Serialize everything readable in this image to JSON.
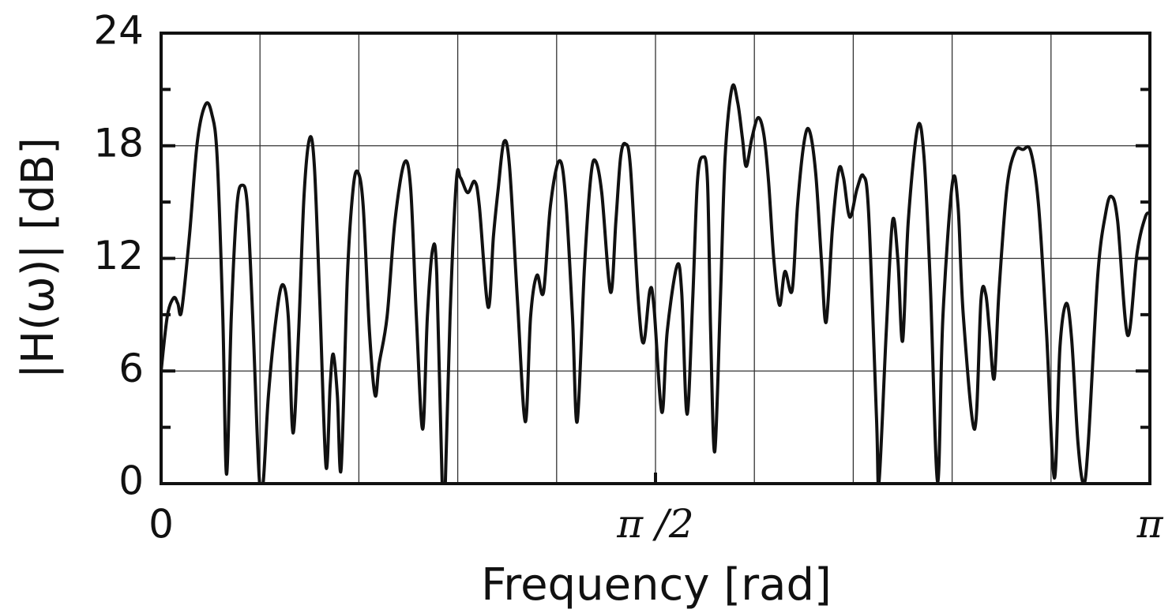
{
  "chart_data": {
    "type": "line",
    "xlabel": "Frequency [rad]",
    "ylabel": "|H(ω)| [dB]",
    "xlim": [
      0,
      3.14159
    ],
    "ylim": [
      0,
      24
    ],
    "xticks": [
      0,
      {
        "value": 1.5708,
        "label": "π /2"
      },
      {
        "value": 3.14159,
        "label": "π"
      }
    ],
    "xgrid": [
      0.314159,
      0.628319,
      0.942478,
      1.256637,
      1.570796,
      1.884956,
      2.199115,
      2.513274,
      2.827433
    ],
    "yticks": [
      0,
      6,
      12,
      18,
      24
    ],
    "yminor": [
      3,
      9,
      15,
      21
    ],
    "grid": true,
    "series": [
      {
        "name": "|H(ω)|",
        "color": "#111111",
        "x": [
          0,
          0.02,
          0.04,
          0.053,
          0.065,
          0.09,
          0.115,
          0.141,
          0.161,
          0.178,
          0.196,
          0.208,
          0.223,
          0.241,
          0.258,
          0.274,
          0.291,
          0.311,
          0.324,
          0.341,
          0.366,
          0.386,
          0.404,
          0.419,
          0.437,
          0.454,
          0.472,
          0.487,
          0.504,
          0.524,
          0.537,
          0.547,
          0.56,
          0.572,
          0.592,
          0.61,
          0.625,
          0.642,
          0.662,
          0.68,
          0.693,
          0.718,
          0.743,
          0.773,
          0.793,
          0.811,
          0.831,
          0.846,
          0.863,
          0.876,
          0.893,
          0.903,
          0.918,
          0.938,
          0.951,
          0.974,
          0.996,
          1.011,
          1.039,
          1.056,
          1.071,
          1.089,
          1.107,
          1.132,
          1.157,
          1.174,
          1.194,
          1.215,
          1.237,
          1.265,
          1.285,
          1.307,
          1.322,
          1.345,
          1.365,
          1.38,
          1.4,
          1.428,
          1.445,
          1.46,
          1.475,
          1.491,
          1.516,
          1.533,
          1.553,
          1.566,
          1.591,
          1.608,
          1.639,
          1.654,
          1.671,
          1.689,
          1.704,
          1.721,
          1.736,
          1.746,
          1.759,
          1.777,
          1.792,
          1.814,
          1.832,
          1.847,
          1.859,
          1.877,
          1.897,
          1.915,
          1.93,
          1.947,
          1.965,
          1.982,
          2.005,
          2.022,
          2.043,
          2.06,
          2.08,
          2.098,
          2.113,
          2.133,
          2.153,
          2.168,
          2.188,
          2.211,
          2.231,
          2.248,
          2.273,
          2.281,
          2.304,
          2.324,
          2.341,
          2.356,
          2.374,
          2.404,
          2.424,
          2.444,
          2.467,
          2.484,
          2.514,
          2.532,
          2.549,
          2.585,
          2.605,
          2.62,
          2.632,
          2.647,
          2.662,
          2.687,
          2.713,
          2.738,
          2.763,
          2.788,
          2.813,
          2.838,
          2.856,
          2.876,
          2.893,
          2.913,
          2.931,
          2.946,
          2.976,
          3.001,
          3.019,
          3.039,
          3.071,
          3.101,
          3.127,
          3.142
        ],
        "values": [
          6.0,
          8.95,
          9.9,
          9.6,
          9.2,
          13.2,
          18.2,
          20.2,
          19.7,
          17.4,
          8.9,
          0.5,
          8.9,
          14.8,
          15.9,
          14.8,
          8.9,
          0.5,
          0,
          4.7,
          8.9,
          10.6,
          8.9,
          2.7,
          8.1,
          15.3,
          18.4,
          16.9,
          9.8,
          0.9,
          5.2,
          6.9,
          4.7,
          0.8,
          11.1,
          15.7,
          16.6,
          14.8,
          8.1,
          4.7,
          6.4,
          8.9,
          14.0,
          17.1,
          15.7,
          8.9,
          2.9,
          8.9,
          12.5,
          11.1,
          0,
          0,
          8.9,
          16.1,
          16.3,
          15.5,
          16.1,
          14.8,
          9.4,
          13.2,
          15.7,
          18.2,
          16.9,
          9.8,
          3.3,
          8.9,
          11.1,
          10.2,
          14.8,
          17.2,
          15.3,
          8.9,
          3.3,
          11.5,
          16.3,
          17.2,
          15.5,
          10.2,
          14.0,
          17.4,
          18.1,
          16.9,
          9.8,
          7.5,
          10.3,
          9.4,
          3.8,
          8.1,
          11.6,
          10.2,
          3.7,
          9.8,
          16.1,
          17.4,
          16.1,
          8.1,
          1.7,
          9.8,
          17.4,
          21.1,
          20.3,
          18.4,
          16.9,
          18.4,
          19.5,
          18.6,
          16.1,
          11.9,
          9.5,
          11.3,
          10.3,
          14.8,
          18.2,
          18.8,
          16.5,
          11.9,
          8.6,
          13.6,
          16.7,
          16.3,
          14.2,
          15.7,
          16.4,
          14.4,
          3.5,
          0.1,
          8.1,
          14.0,
          11.9,
          7.6,
          14.0,
          19.0,
          17.4,
          10.6,
          0.1,
          8.9,
          16.0,
          14.8,
          8.9,
          2.9,
          9.8,
          10.1,
          8.1,
          5.6,
          10.2,
          15.7,
          17.7,
          17.8,
          17.7,
          14.8,
          8.1,
          0.3,
          7.3,
          9.6,
          7.7,
          2.2,
          0,
          2.2,
          11.1,
          14.4,
          15.3,
          14.0,
          7.9,
          12.3,
          14.2,
          14.4
        ]
      }
    ]
  }
}
